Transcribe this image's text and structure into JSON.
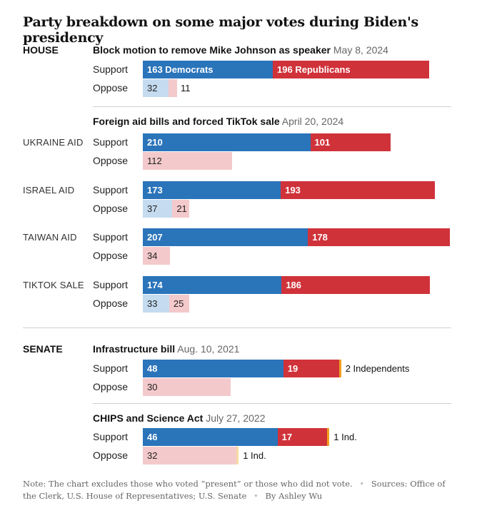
{
  "title": "Party breakdown on some major votes during Biden's presidency",
  "colors": {
    "democrat": "#2a74ba",
    "republican": "#d0323a",
    "democrat_oppose": "#c5dcf0",
    "republican_oppose": "#f4c9cb",
    "independent": "#f0a020"
  },
  "labels": {
    "support": "Support",
    "oppose": "Oppose"
  },
  "house": {
    "chamber": "HOUSE",
    "johnson": {
      "title": "Block motion to remove Mike Johnson as speaker",
      "date": "May 8, 2024"
    },
    "foreign": {
      "title": "Foreign aid bills and forced TikTok sale",
      "date": "April 20, 2024"
    }
  },
  "senate": {
    "chamber": "SENATE",
    "infra": {
      "title": "Infrastructure bill",
      "date": "Aug. 10, 2021"
    },
    "chips": {
      "title": "CHIPS and Science Act",
      "date": "July 27, 2022"
    }
  },
  "chart_data": {
    "type": "bar",
    "orientation": "horizontal",
    "stacked": true,
    "series": [
      {
        "name": "Democrats"
      },
      {
        "name": "Republicans"
      },
      {
        "name": "Independents"
      }
    ],
    "votes": [
      {
        "chamber": "House",
        "bill": "",
        "title": "Block motion to remove Mike Johnson as speaker",
        "date": "May 8, 2024",
        "support": {
          "dem": 163,
          "rep": 196,
          "ind": 0,
          "dem_label": "163 Democrats",
          "rep_label": "196 Republicans",
          "ind_label": ""
        },
        "oppose": {
          "dem": 32,
          "rep": 11,
          "ind": 0,
          "dem_label": "32",
          "rep_label": "11",
          "ind_label": ""
        }
      },
      {
        "chamber": "House",
        "bill": "UKRAINE AID",
        "title": "Foreign aid bills and forced TikTok sale",
        "date": "April 20, 2024",
        "support": {
          "dem": 210,
          "rep": 101,
          "ind": 0,
          "dem_label": "210",
          "rep_label": "101",
          "ind_label": ""
        },
        "oppose": {
          "dem": 0,
          "rep": 112,
          "ind": 0,
          "dem_label": "",
          "rep_label": "112",
          "ind_label": ""
        }
      },
      {
        "chamber": "House",
        "bill": "ISRAEL AID",
        "support": {
          "dem": 173,
          "rep": 193,
          "ind": 0,
          "dem_label": "173",
          "rep_label": "193",
          "ind_label": ""
        },
        "oppose": {
          "dem": 37,
          "rep": 21,
          "ind": 0,
          "dem_label": "37",
          "rep_label": "21",
          "ind_label": ""
        }
      },
      {
        "chamber": "House",
        "bill": "TAIWAN AID",
        "support": {
          "dem": 207,
          "rep": 178,
          "ind": 0,
          "dem_label": "207",
          "rep_label": "178",
          "ind_label": ""
        },
        "oppose": {
          "dem": 0,
          "rep": 34,
          "ind": 0,
          "dem_label": "",
          "rep_label": "34",
          "ind_label": ""
        }
      },
      {
        "chamber": "House",
        "bill": "TIKTOK SALE",
        "support": {
          "dem": 174,
          "rep": 186,
          "ind": 0,
          "dem_label": "174",
          "rep_label": "186",
          "ind_label": ""
        },
        "oppose": {
          "dem": 33,
          "rep": 25,
          "ind": 0,
          "dem_label": "33",
          "rep_label": "25",
          "ind_label": ""
        }
      },
      {
        "chamber": "Senate",
        "bill": "",
        "title": "Infrastructure bill",
        "date": "Aug. 10, 2021",
        "support": {
          "dem": 48,
          "rep": 19,
          "ind": 2,
          "dem_label": "48",
          "rep_label": "19",
          "ind_label": "2 Independents"
        },
        "oppose": {
          "dem": 0,
          "rep": 30,
          "ind": 0,
          "dem_label": "",
          "rep_label": "30",
          "ind_label": ""
        }
      },
      {
        "chamber": "Senate",
        "bill": "",
        "title": "CHIPS and Science Act",
        "date": "July 27, 2022",
        "support": {
          "dem": 46,
          "rep": 17,
          "ind": 1,
          "dem_label": "46",
          "rep_label": "17",
          "ind_label": "1 Ind."
        },
        "oppose": {
          "dem": 0,
          "rep": 32,
          "ind": 1,
          "dem_label": "",
          "rep_label": "32",
          "ind_label": "1 Ind."
        }
      }
    ]
  },
  "footer": {
    "note": "Note: The chart excludes those who voted “present” or those who did not vote.",
    "sources": "Sources: Office of the Clerk, U.S. House of Representatives; U.S. Senate",
    "byline": "By Ashley Wu",
    "separator": "•"
  }
}
